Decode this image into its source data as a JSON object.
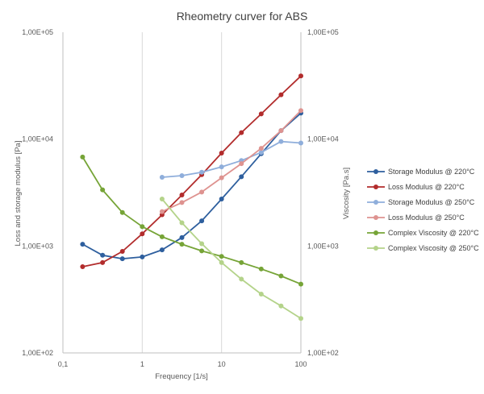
{
  "chart_data": {
    "type": "line",
    "title": "Rheometry curver for ABS",
    "xlabel": "Frequency [1/s]",
    "ylabel": "Loss and storage modulus [Pa]",
    "y2label": "Viscosity [Pa.s]",
    "x_scale": "log",
    "y_scale": "log",
    "xlim": [
      0.1,
      100
    ],
    "ylim": [
      100,
      100000
    ],
    "y2lim": [
      100,
      100000
    ],
    "x_ticks": [
      "0,1",
      "1",
      "10",
      "100"
    ],
    "y_ticks": [
      "1,00E+02",
      "1,00E+03",
      "1,00E+04",
      "1,00E+05"
    ],
    "y2_ticks": [
      "1,00E+02",
      "1,00E+03",
      "1,00E+04",
      "1,00E+05"
    ],
    "grid": "vertical",
    "legend_position": "right",
    "series": [
      {
        "name": "Storage Modulus @ 220°C",
        "color": "#2e5f9e",
        "x": [
          0.177,
          0.316,
          0.562,
          1.0,
          1.778,
          3.162,
          5.623,
          10.0,
          17.78,
          31.62,
          56.23,
          100.0
        ],
        "y": [
          1040,
          820,
          760,
          790,
          920,
          1200,
          1720,
          2750,
          4450,
          7300,
          12000,
          17500
        ]
      },
      {
        "name": "Loss Modulus @ 220°C",
        "color": "#b22c2c",
        "x": [
          0.177,
          0.316,
          0.562,
          1.0,
          1.778,
          3.162,
          5.623,
          10.0,
          17.78,
          31.62,
          56.23,
          100.0
        ],
        "y": [
          640,
          700,
          890,
          1300,
          1960,
          3000,
          4650,
          7400,
          11500,
          17200,
          26000,
          39000
        ]
      },
      {
        "name": "Storage Modulus @ 250°C",
        "color": "#8faedb",
        "x": [
          1.778,
          3.162,
          5.623,
          10.0,
          17.78,
          31.62,
          56.23,
          100.0
        ],
        "y": [
          4400,
          4550,
          4900,
          5500,
          6300,
          7500,
          9500,
          9200
        ]
      },
      {
        "name": "Loss Modulus @ 250°C",
        "color": "#de9390",
        "x": [
          1.778,
          3.162,
          5.623,
          10.0,
          17.78,
          31.62,
          56.23,
          100.0
        ],
        "y": [
          2100,
          2550,
          3200,
          4350,
          5900,
          8200,
          12000,
          18500
        ]
      },
      {
        "name": "Complex Viscosity @ 220°C",
        "color": "#76a437",
        "x": [
          0.177,
          0.316,
          0.562,
          1.0,
          1.778,
          3.162,
          5.623,
          10.0,
          17.78,
          31.62,
          56.23,
          100.0
        ],
        "y": [
          6800,
          3350,
          2060,
          1520,
          1220,
          1040,
          900,
          800,
          700,
          610,
          525,
          440
        ]
      },
      {
        "name": "Complex Viscosity @ 250°C",
        "color": "#b4d38a",
        "x": [
          1.778,
          3.162,
          5.623,
          10.0,
          17.78,
          31.62,
          56.23,
          100.0
        ],
        "y": [
          2750,
          1650,
          1050,
          700,
          490,
          355,
          275,
          210
        ]
      }
    ]
  }
}
